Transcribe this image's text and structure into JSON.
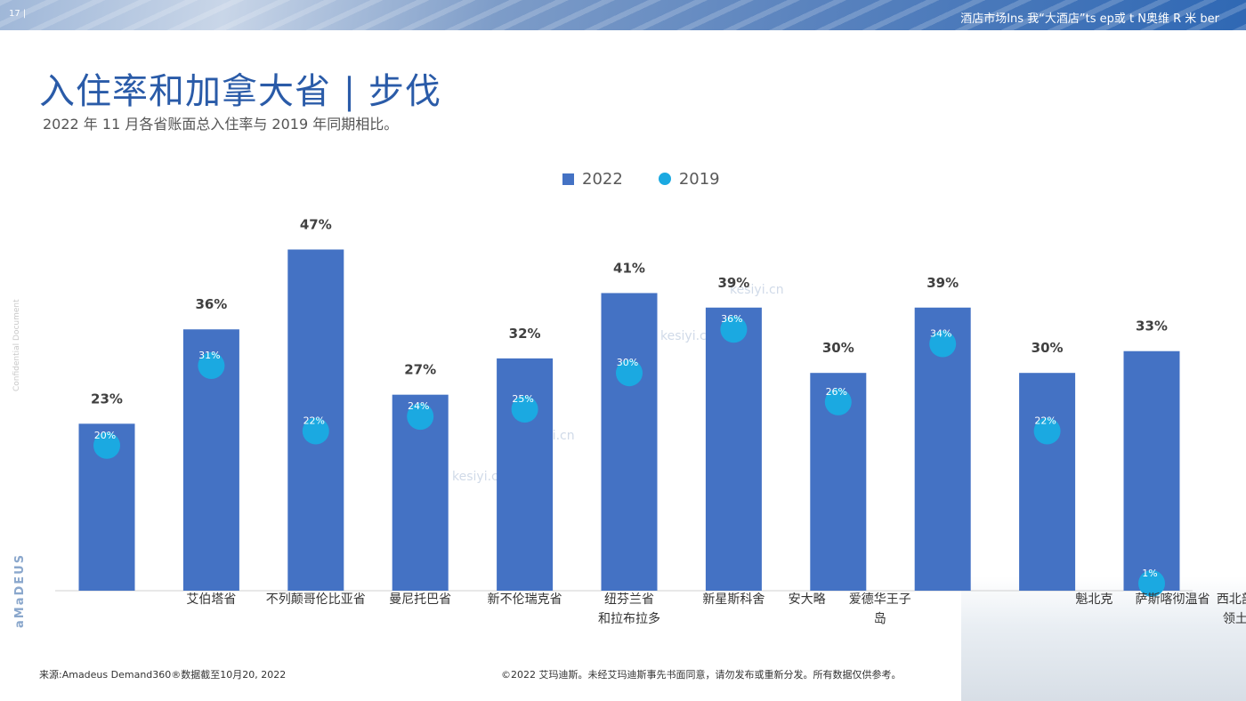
{
  "header": {
    "page_number": "17 |",
    "right_text": "酒店市场Ins 我“大酒店”ts ep或 t N奥维 R 米 ber"
  },
  "title": "入住率和加拿大省 | 步伐",
  "subtitle": "2022 年 11 月各省账面总入住率与 2019 年同期相比。",
  "side_text": "Confidential Document",
  "logo_text": "aMaDEUS",
  "watermark": "kesiyi.cn",
  "colors": {
    "bar_2022": "#4472c4",
    "dot_2019": "#1ba9e1",
    "title": "#2a5ba8"
  },
  "chart_data": {
    "type": "bar",
    "legend": [
      "2022",
      "2019"
    ],
    "legend_position": "top-center",
    "categories": [
      "",
      "艾伯塔省",
      "不列颠哥伦比亚省",
      "曼尼托巴省",
      "新不伦瑞克省 纽芬兰省和拉布拉多",
      "",
      "新星斯科舍安大略",
      "爱德华王子岛",
      "",
      "魁北克萨斯喀彻温省西北部领土",
      ""
    ],
    "category_labels": [
      {
        "lines": [
          "艾伯塔省"
        ],
        "under": 1
      },
      {
        "lines": [
          "不列颠哥伦比亚省"
        ],
        "under": 2
      },
      {
        "lines": [
          "曼尼托巴省"
        ],
        "under": 3
      },
      {
        "lines": [
          "新不伦瑞克省"
        ],
        "under": 4
      },
      {
        "lines": [
          "纽芬兰省",
          "和拉布拉多"
        ],
        "under": 5
      },
      {
        "lines": [
          "新星斯科舍"
        ],
        "under": 6
      },
      {
        "lines": [
          "安大略"
        ],
        "under": 6.7
      },
      {
        "lines": [
          "爱德华王子",
          "岛"
        ],
        "under": 7.4
      },
      {
        "lines": [
          "魁北克"
        ],
        "under": 9.45
      },
      {
        "lines": [
          "萨斯喀彻温省"
        ],
        "under": 10.2
      },
      {
        "lines": [
          "西北部",
          "领土"
        ],
        "under": 10.8
      }
    ],
    "series": [
      {
        "name": "2022",
        "type": "bar",
        "values": [
          23,
          36,
          47,
          27,
          32,
          41,
          39,
          30,
          39,
          30,
          33
        ]
      },
      {
        "name": "2019",
        "type": "scatter",
        "values": [
          20,
          31,
          22,
          24,
          25,
          30,
          36,
          26,
          34,
          22,
          1
        ]
      }
    ],
    "value_labels_2022": [
      "23%",
      "36%",
      "47%",
      "27%",
      "32%",
      "41%",
      "39%",
      "30%",
      "39%",
      "30%",
      "33%"
    ],
    "value_labels_2019": [
      "20%",
      "31%",
      "22%",
      "24%",
      "25%",
      "30%",
      "36%",
      "26%",
      "34%",
      "22%",
      "1%"
    ],
    "ylim": [
      0,
      50
    ],
    "grid": false
  },
  "footer": {
    "source": "来源:Amadeus Demand360®数据截至10月20, 2022",
    "copyright": "©2022 艾玛迪斯。未经艾玛迪斯事先书面同意，请勿发布或重新分发。所有数据仅供参考。"
  }
}
